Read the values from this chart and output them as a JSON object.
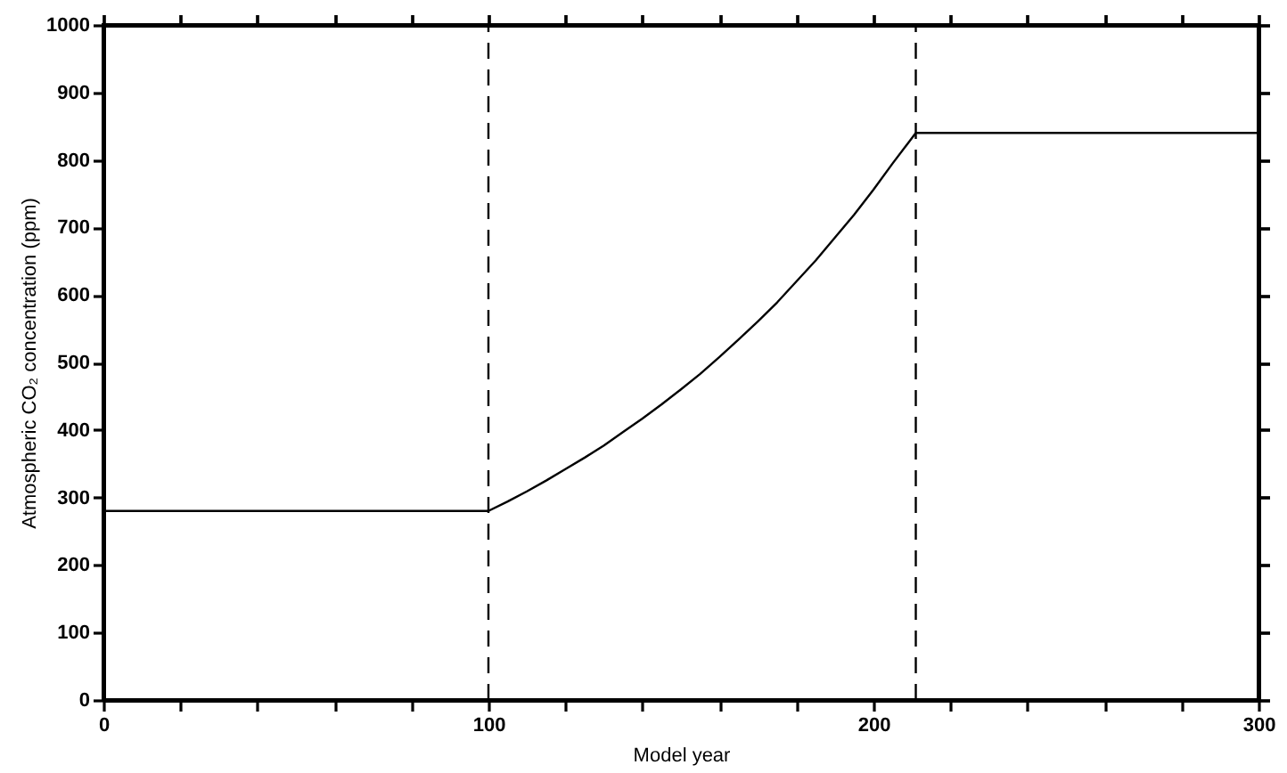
{
  "chart_data": {
    "type": "line",
    "xlabel": "Model year",
    "ylabel": "Atmospheric CO₂ concentration (ppm)",
    "x": [
      0,
      100,
      105,
      110,
      115,
      120,
      125,
      130,
      135,
      140,
      145,
      150,
      155,
      160,
      165,
      170,
      175,
      180,
      185,
      190,
      195,
      200,
      205,
      211,
      300
    ],
    "series": [
      {
        "color": "#000000",
        "values": [
          280,
          280,
          294,
          309,
          325,
          342,
          359,
          377,
          397,
          417,
          438,
          460,
          483,
          508,
          534,
          561,
          589,
          620,
          651,
          685,
          719,
          756,
          795,
          840,
          840
        ]
      }
    ],
    "xlim": [
      0,
      300
    ],
    "xticks": [
      0,
      {
        "value": 20,
        "label": null
      },
      {
        "value": 40,
        "label": null
      },
      {
        "value": 60,
        "label": null
      },
      {
        "value": 80,
        "label": null
      },
      100,
      {
        "value": 120,
        "label": null
      },
      {
        "value": 140,
        "label": null
      },
      {
        "value": 160,
        "label": null
      },
      {
        "value": 180,
        "label": null
      },
      200,
      {
        "value": 220,
        "label": null
      },
      {
        "value": 240,
        "label": null
      },
      {
        "value": 260,
        "label": null
      },
      {
        "value": 280,
        "label": null
      },
      300
    ],
    "ylim": [
      0,
      1000
    ],
    "yticks": [
      0,
      100,
      200,
      300,
      400,
      500,
      600,
      700,
      800,
      900,
      1000
    ],
    "ref_lines": [
      {
        "axis": "x",
        "value": 100,
        "color": "#000000",
        "line_style": "dashed"
      },
      {
        "axis": "x",
        "value": 211,
        "color": "#000000",
        "line_style": "dashed"
      }
    ],
    "grid": false,
    "marker": "none",
    "line_style": "solid"
  }
}
